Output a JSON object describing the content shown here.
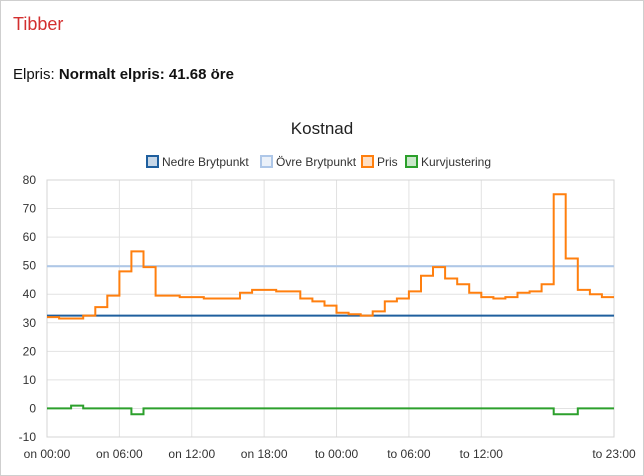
{
  "app": {
    "title": "Tibber"
  },
  "price": {
    "label": "Elpris:",
    "value": "Normalt elpris: 41.68 öre"
  },
  "chart_data": {
    "type": "line",
    "title": "Kostnad",
    "xlabel": "",
    "ylabel": "",
    "ylim": [
      -10,
      80
    ],
    "y_ticks": [
      -10,
      0,
      10,
      20,
      30,
      40,
      50,
      60,
      70,
      80
    ],
    "x_tick_labels": [
      "on 00:00",
      "on 06:00",
      "on 12:00",
      "on 18:00",
      "to 00:00",
      "to 06:00",
      "to 12:00",
      "to 23:00"
    ],
    "x_tick_hours": [
      0,
      6,
      12,
      18,
      24,
      30,
      36,
      47
    ],
    "grid": true,
    "legend_position": "top",
    "series": [
      {
        "name": "Nedre Brytpunkt",
        "color": "#1f5f9e",
        "step": false,
        "x": [
          0,
          47
        ],
        "values": [
          32.5,
          32.5
        ]
      },
      {
        "name": "Övre Brytpunkt",
        "color": "#aec7e8",
        "step": false,
        "x": [
          0,
          47
        ],
        "values": [
          49.8,
          49.8
        ]
      },
      {
        "name": "Pris",
        "color": "#ff7f0e",
        "step": true,
        "x": [
          0,
          1,
          2,
          3,
          4,
          5,
          6,
          7,
          8,
          9,
          10,
          11,
          12,
          13,
          14,
          15,
          16,
          17,
          18,
          19,
          20,
          21,
          22,
          23,
          24,
          25,
          26,
          27,
          28,
          29,
          30,
          31,
          32,
          33,
          34,
          35,
          36,
          37,
          38,
          39,
          40,
          41,
          42,
          43,
          44,
          45,
          46,
          47
        ],
        "values": [
          32.0,
          31.5,
          31.5,
          32.5,
          35.5,
          39.5,
          48.0,
          55.0,
          49.5,
          39.5,
          39.5,
          39.0,
          39.0,
          38.5,
          38.5,
          38.5,
          40.5,
          41.5,
          41.5,
          41.0,
          41.0,
          38.5,
          37.5,
          36.0,
          33.5,
          33.0,
          32.5,
          34.0,
          37.5,
          38.5,
          41.0,
          46.5,
          49.5,
          45.5,
          43.5,
          40.5,
          39.0,
          38.5,
          39.0,
          40.5,
          41.0,
          43.5,
          75.0,
          52.5,
          41.5,
          40.0,
          39.0,
          39.0
        ]
      },
      {
        "name": "Kurvjustering",
        "color": "#2ca02c",
        "step": true,
        "x": [
          0,
          1,
          2,
          3,
          4,
          5,
          6,
          7,
          8,
          9,
          10,
          11,
          12,
          13,
          14,
          15,
          16,
          17,
          18,
          19,
          20,
          21,
          22,
          23,
          24,
          25,
          26,
          27,
          28,
          29,
          30,
          31,
          32,
          33,
          34,
          35,
          36,
          37,
          38,
          39,
          40,
          41,
          42,
          43,
          44,
          45,
          46,
          47
        ],
        "values": [
          0,
          0,
          1,
          0,
          0,
          0,
          0,
          -2,
          0,
          0,
          0,
          0,
          0,
          0,
          0,
          0,
          0,
          0,
          0,
          0,
          0,
          0,
          0,
          0,
          0,
          0,
          0,
          0,
          0,
          0,
          0,
          0,
          0,
          0,
          0,
          0,
          0,
          0,
          0,
          0,
          0,
          0,
          -2,
          -2,
          0,
          0,
          0,
          0
        ]
      }
    ]
  }
}
